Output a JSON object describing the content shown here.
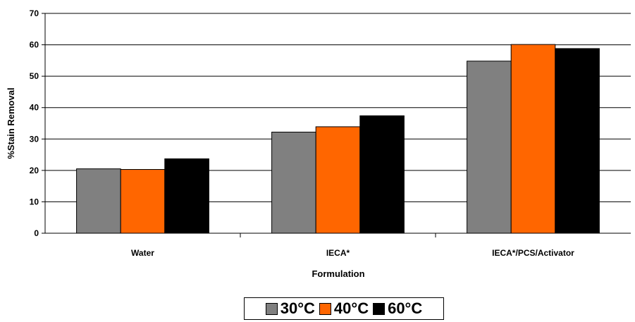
{
  "chart_data": {
    "type": "bar",
    "title": "",
    "xlabel": "Formulation",
    "ylabel": "%Stain Removal",
    "ylim": [
      0,
      70
    ],
    "yticks": [
      "0",
      "10",
      "20",
      "30",
      "40",
      "50",
      "60",
      "70"
    ],
    "grid": true,
    "legend_position": "bottom",
    "categories": [
      "Water",
      "IECA*",
      "IECA*/PCS/Activator"
    ],
    "series": [
      {
        "name": "30°C",
        "color": "#808080",
        "values": [
          20.5,
          32.2,
          54.8
        ]
      },
      {
        "name": "40°C",
        "color": "#ff6600",
        "values": [
          20.3,
          33.9,
          60.1
        ]
      },
      {
        "name": "60°C",
        "color": "#000000",
        "values": [
          23.7,
          37.4,
          58.8
        ]
      }
    ]
  }
}
